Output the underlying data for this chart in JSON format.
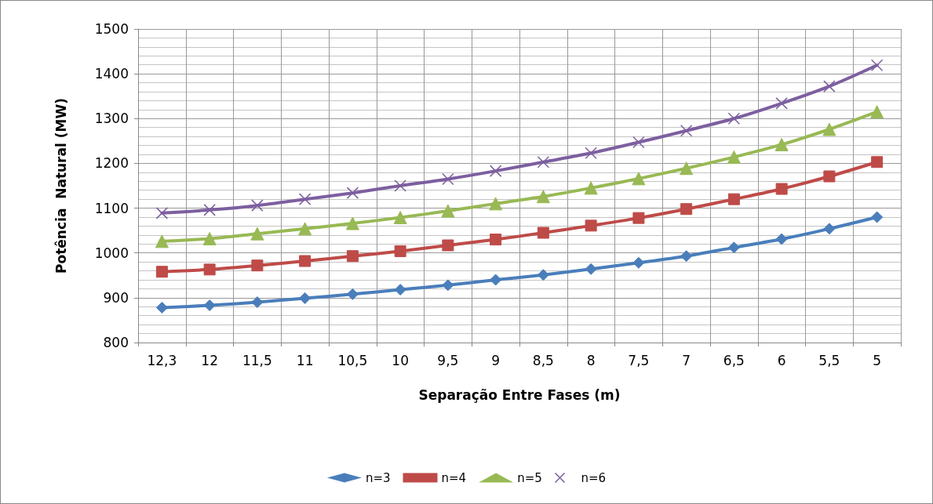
{
  "chart_data": {
    "type": "line",
    "xlabel": "Separação Entre Fases (m)",
    "ylabel": "Potência  Natural (MW)",
    "categories": [
      "12,3",
      "12",
      "11,5",
      "11",
      "10,5",
      "10",
      "9,5",
      "9",
      "8,5",
      "8",
      "7,5",
      "7",
      "6,5",
      "6",
      "5,5",
      "5"
    ],
    "series": [
      {
        "name": "n=3",
        "color": "#4a7ebb",
        "marker": "diamond",
        "values": [
          878,
          883,
          890,
          899,
          908,
          918,
          928,
          940,
          951,
          964,
          978,
          993,
          1012,
          1031,
          1054,
          1080
        ]
      },
      {
        "name": "n=4",
        "color": "#be4b48",
        "marker": "square",
        "values": [
          958,
          963,
          972,
          982,
          993,
          1004,
          1017,
          1030,
          1045,
          1061,
          1078,
          1098,
          1120,
          1143,
          1171,
          1203
        ]
      },
      {
        "name": "n=5",
        "color": "#98b954",
        "marker": "triangle",
        "values": [
          1026,
          1032,
          1043,
          1054,
          1066,
          1079,
          1094,
          1110,
          1126,
          1145,
          1166,
          1189,
          1214,
          1242,
          1276,
          1315
        ]
      },
      {
        "name": "n=6",
        "color": "#7d5fa0",
        "marker": "cross",
        "values": [
          1089,
          1096,
          1106,
          1120,
          1134,
          1150,
          1165,
          1183,
          1203,
          1223,
          1247,
          1273,
          1300,
          1334,
          1372,
          1419
        ]
      }
    ],
    "ylim": [
      800,
      1500
    ],
    "yticks": [
      800,
      900,
      1000,
      1100,
      1200,
      1300,
      1400,
      1500
    ],
    "grid": true,
    "legend": "bottom",
    "line_style": "solid"
  }
}
